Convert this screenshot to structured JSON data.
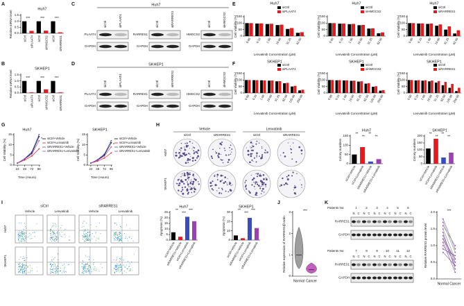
{
  "panel_labels": [
    "A",
    "B",
    "C",
    "D",
    "E",
    "F",
    "G",
    "H",
    "I",
    "J",
    "K"
  ],
  "chart_data": [
    {
      "type": "bar",
      "title": "Huh7",
      "ylabel": "Relative mRNA level",
      "categories": [
        "siCtrl",
        "siPLAAT4",
        "siCtrl",
        "siHMGCS2",
        "siCtrl",
        "siRARRES1"
      ],
      "values": [
        1,
        0.2,
        1,
        0.22,
        1,
        0.08
      ],
      "colors": [
        "#000000",
        "#e41a1c",
        "#000000",
        "#e41a1c",
        "#000000",
        "#e41a1c"
      ],
      "ylim": [
        0,
        1.5
      ],
      "yticks": [
        {
          "value": 0,
          "label": "0.0"
        },
        0.5,
        {
          "value": 1,
          "label": "1.0"
        },
        {
          "value": 1.5,
          "label": "1.5"
        }
      ],
      "annotations": [
        "***",
        "***",
        "***"
      ]
    },
    {
      "type": "bar",
      "title": "SKHEP1",
      "ylabel": "Relative mRNA level",
      "categories": [
        "siCtrl",
        "siPLAAT4",
        "siCtrl",
        "siHMGCS2",
        "siCtrl",
        "siRARRES1"
      ],
      "values": [
        1,
        0.05,
        1,
        0.3,
        1,
        0.05
      ],
      "colors": [
        "#000000",
        "#e41a1c",
        "#000000",
        "#e41a1c",
        "#000000",
        "#e41a1c"
      ],
      "ylim": [
        0,
        1.5
      ],
      "yticks": [
        {
          "value": 0,
          "label": "0.0"
        },
        0.5,
        {
          "value": 1,
          "label": "1.0"
        },
        {
          "value": 1.5,
          "label": "1.5"
        }
      ],
      "annotations": [
        "***",
        "***",
        "***"
      ]
    },
    {
      "type": "bar",
      "title": "Huh7",
      "ylabel": "Cell Viability (%)",
      "xlabel": "Lenvatinib Concentration (μM)",
      "categories": [
        "0.00",
        "0.10",
        "1.00",
        "10.00",
        "31.25",
        "62.50"
      ],
      "series": [
        {
          "name": "siCtrl",
          "color": "#000000",
          "values": [
            100,
            97,
            93,
            85,
            55,
            25
          ]
        },
        {
          "name": "siPLAAT4",
          "color": "#e41a1c",
          "values": [
            100,
            98,
            95,
            88,
            62,
            30
          ]
        }
      ],
      "ylim": [
        0,
        150
      ],
      "yticks": [
        0,
        50,
        100,
        150
      ]
    },
    {
      "type": "bar",
      "title": "Huh7",
      "ylabel": "Cell Viability (%)",
      "xlabel": "Lenvatinib Concentration (μM)",
      "categories": [
        "0.00",
        "0.10",
        "1.00",
        "10.00",
        "31.25",
        "62.50"
      ],
      "series": [
        {
          "name": "siCtrl",
          "color": "#000000",
          "values": [
            100,
            96,
            92,
            84,
            58,
            22
          ]
        },
        {
          "name": "siHMGCS2",
          "color": "#e41a1c",
          "values": [
            100,
            97,
            94,
            86,
            60,
            28
          ]
        }
      ],
      "ylim": [
        0,
        150
      ],
      "yticks": [
        0,
        50,
        100,
        150
      ]
    },
    {
      "type": "bar",
      "title": "Huh7",
      "ylabel": "Cell Viability (%)",
      "xlabel": "Lenvatinib Concentration (μM)",
      "categories": [
        "0.00",
        "0.10",
        "1.00",
        "10.00",
        "31.25",
        "62.50"
      ],
      "series": [
        {
          "name": "siCtrl",
          "color": "#000000",
          "values": [
            100,
            97,
            94,
            80,
            50,
            20
          ]
        },
        {
          "name": "siRARRES1",
          "color": "#e41a1c",
          "values": [
            100,
            98,
            97,
            90,
            75,
            45
          ]
        }
      ],
      "ylim": [
        0,
        150
      ],
      "yticks": [
        0,
        50,
        100,
        150
      ]
    },
    {
      "type": "bar",
      "title": "SKHEP1",
      "ylabel": "Cell Viability (%)",
      "xlabel": "Lenvatinib Concentration (μM)",
      "categories": [
        "0.00",
        "0.10",
        "1.00",
        "10.00",
        "31.25",
        "62.50",
        "125.00",
        "250.00"
      ],
      "series": [
        {
          "name": "siCtrl",
          "color": "#000000",
          "values": [
            100,
            99,
            98,
            95,
            90,
            75,
            50,
            20
          ]
        },
        {
          "name": "siPLAAT4",
          "color": "#e41a1c",
          "values": [
            100,
            99,
            97,
            96,
            91,
            78,
            55,
            25
          ]
        }
      ],
      "ylim": [
        0,
        150
      ],
      "yticks": [
        0,
        50,
        100,
        150
      ]
    },
    {
      "type": "bar",
      "title": "SKHEP1",
      "ylabel": "Cell Viability (%)",
      "xlabel": "Lenvatinib Concentration (μM)",
      "categories": [
        "0.00",
        "0.10",
        "1.00",
        "10.00",
        "31.25",
        "62.50",
        "125.00",
        "250.00"
      ],
      "series": [
        {
          "name": "siCtrl",
          "color": "#000000",
          "values": [
            100,
            98,
            97,
            94,
            88,
            72,
            48,
            18
          ]
        },
        {
          "name": "siHMGCS2",
          "color": "#e41a1c",
          "values": [
            100,
            99,
            98,
            95,
            90,
            76,
            52,
            22
          ]
        }
      ],
      "ylim": [
        0,
        150
      ],
      "yticks": [
        0,
        50,
        100,
        150
      ]
    },
    {
      "type": "bar",
      "title": "SKHEP1",
      "ylabel": "Cell Viability (%)",
      "xlabel": "Lenvatinib Concentration (μM)",
      "categories": [
        "0.00",
        "0.10",
        "1.00",
        "10.00",
        "31.25",
        "62.50",
        "125.00",
        "250.00"
      ],
      "series": [
        {
          "name": "siCtrl",
          "color": "#000000",
          "values": [
            100,
            97,
            95,
            90,
            80,
            60,
            40,
            15
          ]
        },
        {
          "name": "siRARRES1",
          "color": "#e41a1c",
          "values": [
            100,
            99,
            98,
            96,
            92,
            85,
            70,
            40
          ]
        }
      ],
      "ylim": [
        0,
        150
      ],
      "yticks": [
        0,
        50,
        100,
        150
      ]
    },
    {
      "type": "line",
      "title": "Huh7",
      "ylabel": "Cell Viability (%)",
      "xlabel": "Time (Hours)",
      "x": [
        24,
        48,
        72,
        96
      ],
      "xlim": [
        12,
        100
      ],
      "xticks": [
        24,
        48,
        72,
        96
      ],
      "ylim": [
        0,
        15
      ],
      "yticks": [
        0,
        5,
        10,
        15
      ],
      "series": [
        {
          "name": "siCtrl+Vehicle",
          "color": "#000000",
          "values": [
            1,
            3,
            6,
            14
          ]
        },
        {
          "name": "siCtrl+Lenvatinib",
          "color": "#e41a1c",
          "values": [
            1,
            2.5,
            4.5,
            8
          ]
        },
        {
          "name": "siRARRES1+Vehicle",
          "color": "#3b4cc0",
          "values": [
            1,
            3.2,
            6.5,
            15
          ]
        },
        {
          "name": "siRARRES1+Lenvatinib",
          "color": "#9b3fb5",
          "values": [
            1,
            3,
            5.5,
            12
          ]
        }
      ],
      "annotations": [
        "*"
      ]
    },
    {
      "type": "line",
      "title": "SKHEP1",
      "ylabel": "Cell Viability (%)",
      "xlabel": "Time (Hours)",
      "x": [
        24,
        48,
        72,
        96
      ],
      "xlim": [
        12,
        100
      ],
      "xticks": [
        24,
        48,
        72,
        96
      ],
      "ylim": [
        0,
        15
      ],
      "yticks": [
        0,
        5,
        10,
        15
      ],
      "series": [
        {
          "name": "siCtrl+Vehicle",
          "color": "#000000",
          "values": [
            1,
            2.5,
            5,
            11
          ]
        },
        {
          "name": "siCtrl+Lenvatinib",
          "color": "#e41a1c",
          "values": [
            1,
            2,
            3.5,
            6
          ]
        },
        {
          "name": "siRARRES1+Vehicle",
          "color": "#3b4cc0",
          "values": [
            1,
            2.7,
            5.5,
            12
          ]
        },
        {
          "name": "siRARRES1+Lenvatinib",
          "color": "#9b3fb5",
          "values": [
            1,
            2.4,
            4.5,
            9
          ]
        }
      ],
      "annotations": [
        "*"
      ]
    },
    {
      "type": "bar",
      "title": "Huh7",
      "ylabel": "Colony numbers",
      "categories": [
        "siCtrl+Vehicle",
        "siCtrl+Lenvatinib",
        "siRARRES1+Vehicle",
        "siRARRES1+Lenvatinib"
      ],
      "values": [
        50,
        90,
        12,
        25
      ],
      "colors": [
        "#000000",
        "#e41a1c",
        "#3b4cc0",
        "#9b3fb5"
      ],
      "ylim": [
        0,
        150
      ],
      "yticks": [
        0,
        50,
        100,
        150
      ],
      "annotations": [
        "**",
        "**",
        "**",
        "**"
      ]
    },
    {
      "type": "bar",
      "title": "SKHEP1",
      "ylabel": "Colony numbers",
      "categories": [
        "siCtrl+Vehicle",
        "siCtrl+Lenvatinib",
        "siRARRES1+Vehicle",
        "siRARRES1+Lenvatinib"
      ],
      "values": [
        110,
        180,
        45,
        80
      ],
      "colors": [
        "#000000",
        "#e41a1c",
        "#3b4cc0",
        "#9b3fb5"
      ],
      "ylim": [
        0,
        200
      ],
      "yticks": [
        0,
        50,
        100,
        150,
        200
      ],
      "annotations": [
        "**",
        "**",
        "**",
        "**"
      ]
    },
    {
      "type": "bar",
      "title": "Huh7",
      "ylabel": "Apoptosis (%)",
      "categories": [
        "siCtrl+Vehicle",
        "siRARRES1+Vehicle",
        "siCtrl+Lenvatinib",
        "siRARRES1+Lenvatinib"
      ],
      "values": [
        7,
        3,
        21,
        17
      ],
      "colors": [
        "#000000",
        "#e41a1c",
        "#3b4cc0",
        "#9b3fb5"
      ],
      "ylim": [
        0,
        25
      ],
      "yticks": [
        0,
        5,
        10,
        15,
        20,
        25
      ],
      "annotations": [
        "**",
        "***",
        "***"
      ]
    },
    {
      "type": "bar",
      "title": "SKHEP1",
      "ylabel": "Apoptosis (%)",
      "categories": [
        "siCtrl+Vehicle",
        "siRARRES1+Vehicle",
        "siCtrl+Lenvatinib",
        "siRARRES1+Lenvatinib"
      ],
      "values": [
        5,
        2,
        24,
        13
      ],
      "colors": [
        "#000000",
        "#e41a1c",
        "#3b4cc0",
        "#9b3fb5"
      ],
      "ylim": [
        0,
        30
      ],
      "yticks": [
        0,
        10,
        20,
        30
      ],
      "annotations": [
        "**",
        "***",
        "***"
      ]
    },
    {
      "type": "violin",
      "ylabel": "Relative expression of RARRES1/β-actin",
      "categories": [
        "Normal",
        "Cancer"
      ],
      "values": [
        1,
        0.3
      ],
      "colors": [
        "#9e9e9e",
        "#c060c0"
      ],
      "ylim": [
        0,
        3
      ],
      "yticks": [
        0,
        1,
        2,
        3
      ],
      "annotations": [
        "***"
      ]
    },
    {
      "type": "paired",
      "ylabel": "Relative RARRES1 protein level",
      "categories": [
        "Normal",
        "Cancer"
      ],
      "values": [
        [
          1.5,
          0.6
        ],
        [
          1.2,
          0.4
        ],
        [
          1.8,
          0.9
        ],
        [
          1,
          0.5
        ],
        [
          1.4,
          0.3
        ],
        [
          0.9,
          0.7
        ],
        [
          1.6,
          1
        ],
        [
          1.3,
          0.5
        ],
        [
          1.1,
          0.2
        ],
        [
          1.7,
          0.8
        ],
        [
          0.8,
          0.4
        ],
        [
          1.2,
          0.6
        ]
      ],
      "color": "#7b4fa0",
      "ylim": [
        0,
        2
      ],
      "yticks": [
        {
          "value": 0,
          "label": "0.0"
        },
        0.5,
        {
          "value": 1,
          "label": "1.0"
        },
        {
          "value": 1.5,
          "label": "1.5"
        },
        {
          "value": 2,
          "label": "2.0"
        }
      ],
      "annotations": [
        "***"
      ]
    }
  ],
  "blot_panels": [
    {
      "title": "Huh7",
      "groups": [
        {
          "lanes": [
            "siCtrl",
            "siPLAAT4"
          ],
          "rows": [
            "PLAAT4",
            "GAPDH"
          ]
        },
        {
          "lanes": [
            "siCtrl",
            "siRARRES1"
          ],
          "rows": [
            "RARRES1",
            "GAPDH"
          ]
        },
        {
          "lanes": [
            "siCtrl",
            "siHMGCS2"
          ],
          "rows": [
            "HMGCS2",
            "GAPDH"
          ]
        }
      ]
    },
    {
      "title": "SKHEP1",
      "groups": [
        {
          "lanes": [
            "siCtrl",
            "siPLAAT4"
          ],
          "rows": [
            "PLAAT4",
            "GAPDH"
          ]
        },
        {
          "lanes": [
            "siCtrl",
            "siRARRES1"
          ],
          "rows": [
            "RARRES1",
            "GAPDH"
          ]
        },
        {
          "lanes": [
            "siCtrl",
            "siHMGCS2"
          ],
          "rows": [
            "HMGCS2",
            "GAPDH"
          ]
        }
      ]
    }
  ],
  "colony_images": {
    "conditions": [
      "Vehicle",
      "Lenvatinib"
    ],
    "lanes": [
      "siCtrl",
      "siRARRES1"
    ],
    "rows": [
      "Huh7",
      "SKHEP1"
    ]
  },
  "flow_images": {
    "groups": [
      "siCtrl",
      "siRARRES1"
    ],
    "conditions": [
      "Vehicle",
      "Lenvatinib"
    ],
    "rows": [
      "Huh7",
      "SKHEP1"
    ]
  },
  "patient_blots": {
    "label": "Patients No:",
    "patients": [
      [
        1,
        2,
        3,
        4,
        5,
        6
      ],
      [
        7,
        8,
        9,
        10,
        11,
        12
      ]
    ],
    "lanes": [
      "N",
      "C"
    ],
    "rows": [
      "RARRES1",
      "GAPDH"
    ]
  }
}
